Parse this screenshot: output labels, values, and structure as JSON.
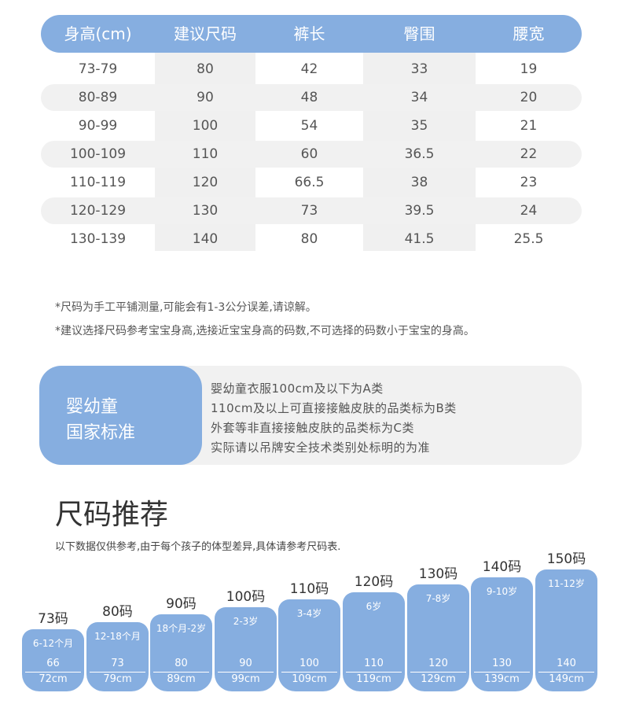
{
  "size_table": {
    "headers": [
      "身高(cm)",
      "建议尺码",
      "裤长",
      "臀围",
      "腰宽"
    ],
    "rows": [
      [
        "73-79",
        "80",
        "42",
        "33",
        "19"
      ],
      [
        "80-89",
        "90",
        "48",
        "34",
        "20"
      ],
      [
        "90-99",
        "100",
        "54",
        "35",
        "21"
      ],
      [
        "100-109",
        "110",
        "60",
        "36.5",
        "22"
      ],
      [
        "110-119",
        "120",
        "66.5",
        "38",
        "23"
      ],
      [
        "120-129",
        "130",
        "73",
        "39.5",
        "24"
      ],
      [
        "130-139",
        "140",
        "80",
        "41.5",
        "25.5"
      ]
    ]
  },
  "notes": [
    "*尺码为手工平铺测量,可能会有1-3公分误差,请谅解。",
    "*建议选择尺码参考宝宝身高,选接近宝宝身高的码数,不可选择的码数小于宝宝的身高。"
  ],
  "standard": {
    "title_lines": [
      "婴幼童",
      "国家标准"
    ],
    "lines": [
      "婴幼童衣服100cm及以下为A类",
      "110cm及以上可直接接触皮肤的品类标为B类",
      "外套等非直接接触皮肤的品类标为C类",
      "实际请以吊牌安全技术类别处标明的为准"
    ]
  },
  "recommend": {
    "title": "尺码推荐",
    "subtitle": "以下数据仅供参考,由于每个孩子的体型差异,具体请参考尺码表.",
    "bars": [
      {
        "code": "73码",
        "age": "6-12个月",
        "num": "66",
        "cm": "72cm"
      },
      {
        "code": "80码",
        "age": "12-18个月",
        "num": "73",
        "cm": "79cm"
      },
      {
        "code": "90码",
        "age": "18个月-2岁",
        "num": "80",
        "cm": "89cm"
      },
      {
        "code": "100码",
        "age": "2-3岁",
        "num": "90",
        "cm": "99cm"
      },
      {
        "code": "110码",
        "age": "3-4岁",
        "num": "100",
        "cm": "109cm"
      },
      {
        "code": "120码",
        "age": "6岁",
        "num": "110",
        "cm": "119cm"
      },
      {
        "code": "130码",
        "age": "7-8岁",
        "num": "120",
        "cm": "129cm"
      },
      {
        "code": "140码",
        "age": "9-10岁",
        "num": "130",
        "cm": "139cm"
      },
      {
        "code": "150码",
        "age": "11-12岁",
        "num": "140",
        "cm": "149cm"
      }
    ]
  },
  "colors": {
    "accent": "#86aee0",
    "row_shade": "#f1f1f1"
  }
}
